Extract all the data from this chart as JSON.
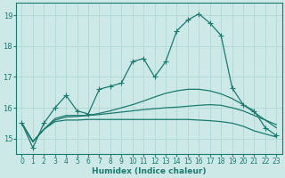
{
  "xlabel": "Humidex (Indice chaleur)",
  "ylabel": "",
  "xlim": [
    -0.5,
    23.5
  ],
  "ylim": [
    14.5,
    19.4
  ],
  "yticks": [
    15,
    16,
    17,
    18,
    19
  ],
  "xticks": [
    0,
    1,
    2,
    3,
    4,
    5,
    6,
    7,
    8,
    9,
    10,
    11,
    12,
    13,
    14,
    15,
    16,
    17,
    18,
    19,
    20,
    21,
    22,
    23
  ],
  "bg_color": "#cce9e8",
  "grid_color": "#b0d8d6",
  "line_color": "#1a7a6e",
  "lines": [
    {
      "x": [
        0,
        1,
        2,
        3,
        4,
        5,
        6,
        7,
        8,
        9,
        10,
        11,
        12,
        13,
        14,
        15,
        16,
        17,
        18,
        19,
        20,
        21,
        22,
        23
      ],
      "y": [
        15.5,
        14.7,
        15.5,
        16.0,
        16.4,
        15.9,
        15.8,
        16.6,
        16.7,
        16.8,
        17.5,
        17.6,
        17.0,
        17.5,
        18.5,
        18.85,
        19.05,
        18.75,
        18.35,
        16.65,
        16.1,
        15.9,
        15.35,
        15.1
      ],
      "marker": "+",
      "ms": 4,
      "lw": 0.9
    },
    {
      "x": [
        0,
        1,
        2,
        3,
        4,
        5,
        6,
        7,
        8,
        9,
        10,
        11,
        12,
        13,
        14,
        15,
        16,
        17,
        18,
        19,
        20,
        21,
        22,
        23
      ],
      "y": [
        15.5,
        14.9,
        15.3,
        15.65,
        15.75,
        15.75,
        15.75,
        15.78,
        15.82,
        15.86,
        15.9,
        15.94,
        15.97,
        16.0,
        16.02,
        16.05,
        16.08,
        16.1,
        16.08,
        16.0,
        15.9,
        15.75,
        15.6,
        15.45
      ],
      "marker": null,
      "ms": 0,
      "lw": 0.9
    },
    {
      "x": [
        0,
        1,
        2,
        3,
        4,
        5,
        6,
        7,
        8,
        9,
        10,
        11,
        12,
        13,
        14,
        15,
        16,
        17,
        18,
        19,
        20,
        21,
        22,
        23
      ],
      "y": [
        15.5,
        14.9,
        15.3,
        15.6,
        15.7,
        15.72,
        15.75,
        15.82,
        15.9,
        16.0,
        16.1,
        16.22,
        16.35,
        16.47,
        16.55,
        16.6,
        16.6,
        16.55,
        16.45,
        16.3,
        16.1,
        15.85,
        15.6,
        15.35
      ],
      "marker": null,
      "ms": 0,
      "lw": 0.9
    },
    {
      "x": [
        0,
        1,
        2,
        3,
        4,
        5,
        6,
        7,
        8,
        9,
        10,
        11,
        12,
        13,
        14,
        15,
        16,
        17,
        18,
        19,
        20,
        21,
        22,
        23
      ],
      "y": [
        15.5,
        14.9,
        15.3,
        15.55,
        15.6,
        15.6,
        15.62,
        15.62,
        15.62,
        15.62,
        15.62,
        15.62,
        15.62,
        15.62,
        15.62,
        15.62,
        15.6,
        15.58,
        15.55,
        15.5,
        15.4,
        15.25,
        15.15,
        15.05
      ],
      "marker": null,
      "ms": 0,
      "lw": 0.9
    }
  ]
}
